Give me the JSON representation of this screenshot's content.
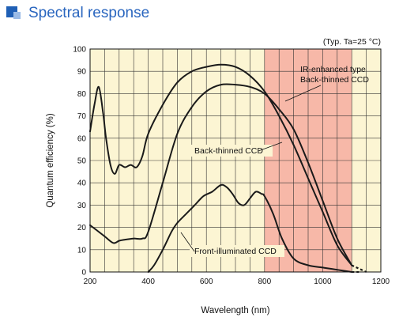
{
  "section": {
    "title": "Spectral response"
  },
  "chart_data": {
    "type": "line",
    "title": "",
    "xlabel": "Wavelength (nm)",
    "ylabel": "Quantum efficiency (%)",
    "xlim": [
      200,
      1200
    ],
    "ylim": [
      0,
      100
    ],
    "x_ticks": [
      200,
      400,
      600,
      800,
      1000,
      1200
    ],
    "y_ticks": [
      0,
      10,
      20,
      30,
      40,
      50,
      60,
      70,
      80,
      90,
      100
    ],
    "grid": true,
    "condition_note": "(Typ. Ta=25 °C)",
    "highlight_band": {
      "x_from": 800,
      "x_to": 1100,
      "color": "#f7b8a8"
    },
    "colors": {
      "plot_bg": "#fcf5d3",
      "line": "#1a1a1a",
      "grid": "#333333",
      "heading": "#2a66bf"
    },
    "series": [
      {
        "name": "IR-enhanced type Back-thinned CCD",
        "label_lines": [
          "IR-enhanced type",
          "Back-thinned CCD"
        ],
        "x": [
          200,
          215,
          230,
          245,
          255,
          270,
          285,
          300,
          320,
          340,
          360,
          380,
          400,
          450,
          500,
          550,
          600,
          650,
          700,
          750,
          800,
          850,
          900,
          950,
          1000,
          1050,
          1100
        ],
        "y": [
          63,
          75,
          83,
          71,
          60,
          48,
          44,
          48,
          47,
          48,
          47,
          52,
          62,
          75,
          85,
          90,
          92,
          93,
          92,
          88,
          81,
          70,
          57,
          42,
          27,
          12,
          3
        ],
        "dashed_x": [
          1100,
          1150
        ],
        "dashed_y": [
          3,
          0
        ]
      },
      {
        "name": "Back-thinned CCD",
        "label_lines": [
          "Back-thinned CCD"
        ],
        "x": [
          200,
          220,
          250,
          280,
          300,
          320,
          350,
          380,
          400,
          450,
          500,
          550,
          600,
          650,
          700,
          750,
          800,
          850,
          900,
          950,
          1000,
          1050,
          1100
        ],
        "y": [
          21,
          19,
          16,
          13,
          14,
          14.5,
          15,
          15,
          18,
          40,
          62,
          74,
          81,
          84,
          84,
          83,
          80,
          73,
          64,
          49,
          32,
          15,
          3
        ],
        "dashed_x": [
          1100,
          1150
        ],
        "dashed_y": [
          3,
          0
        ]
      },
      {
        "name": "Front-illuminated CCD",
        "label_lines": [
          "Front-illuminated CCD"
        ],
        "x": [
          400,
          420,
          450,
          480,
          500,
          530,
          560,
          590,
          620,
          650,
          670,
          690,
          710,
          730,
          750,
          770,
          790,
          800,
          830,
          860,
          900,
          950,
          1000,
          1050,
          1100
        ],
        "y": [
          0,
          3,
          10,
          18,
          22,
          26,
          30,
          34,
          36,
          39,
          38,
          35,
          31,
          30,
          33,
          36,
          35,
          34,
          26,
          15,
          6,
          3,
          2,
          1,
          0
        ],
        "dashed_x": [
          1100,
          1130
        ],
        "dashed_y": [
          0,
          0
        ]
      }
    ]
  }
}
